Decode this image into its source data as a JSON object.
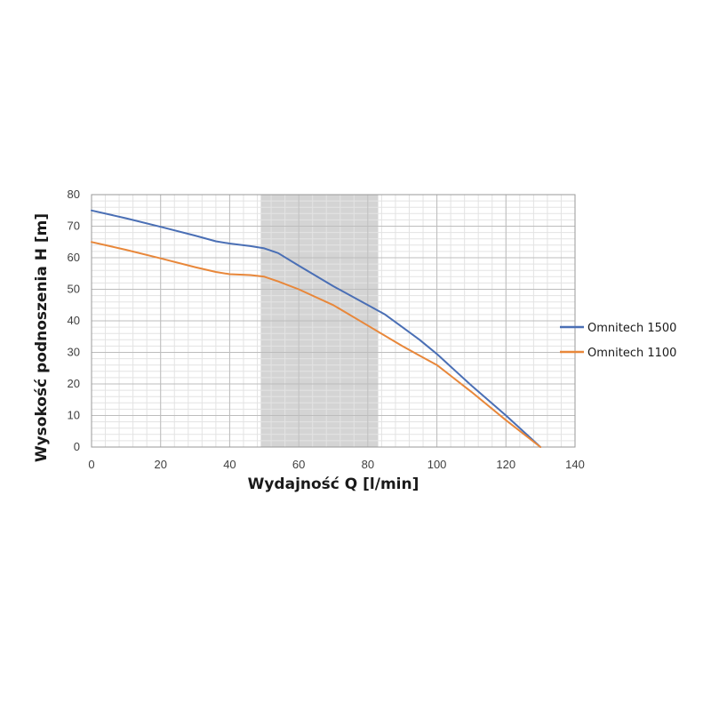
{
  "chart_data": {
    "type": "line",
    "xlabel": "Wydajność Q [l/min]",
    "ylabel": "Wysokość podnoszenia H [m]",
    "xlim": [
      0,
      140
    ],
    "ylim": [
      0,
      80
    ],
    "x_ticks": [
      "0",
      "20",
      "40",
      "60",
      "80",
      "100",
      "120",
      "140"
    ],
    "y_ticks": [
      "0",
      "10",
      "20",
      "30",
      "40",
      "50",
      "60",
      "70",
      "80"
    ],
    "grid": true,
    "legend_position": "right",
    "highlight_region": {
      "x_from": 49,
      "x_to": 83,
      "color": "#d4d4d4"
    },
    "series": [
      {
        "name": "Omnitech 1500",
        "color": "#4a6fb5",
        "points": [
          [
            0,
            75
          ],
          [
            10,
            72.5
          ],
          [
            20,
            69.8
          ],
          [
            30,
            67
          ],
          [
            36,
            65.2
          ],
          [
            40,
            64.5
          ],
          [
            46,
            63.7
          ],
          [
            50,
            63
          ],
          [
            54,
            61.5
          ],
          [
            60,
            57.5
          ],
          [
            70,
            51
          ],
          [
            80,
            45
          ],
          [
            85,
            42
          ],
          [
            90,
            38
          ],
          [
            95,
            34
          ],
          [
            100,
            29.5
          ],
          [
            110,
            19.5
          ],
          [
            120,
            10
          ],
          [
            130,
            0
          ]
        ]
      },
      {
        "name": "Omnitech 1100",
        "color": "#e8873a",
        "points": [
          [
            0,
            65
          ],
          [
            10,
            62.5
          ],
          [
            20,
            59.8
          ],
          [
            30,
            57
          ],
          [
            36,
            55.5
          ],
          [
            40,
            54.8
          ],
          [
            46,
            54.5
          ],
          [
            50,
            54
          ],
          [
            54,
            52.5
          ],
          [
            60,
            50
          ],
          [
            70,
            45
          ],
          [
            80,
            38.5
          ],
          [
            90,
            32
          ],
          [
            95,
            29
          ],
          [
            100,
            26
          ],
          [
            110,
            17.5
          ],
          [
            120,
            8.5
          ],
          [
            130,
            0
          ]
        ]
      }
    ]
  }
}
